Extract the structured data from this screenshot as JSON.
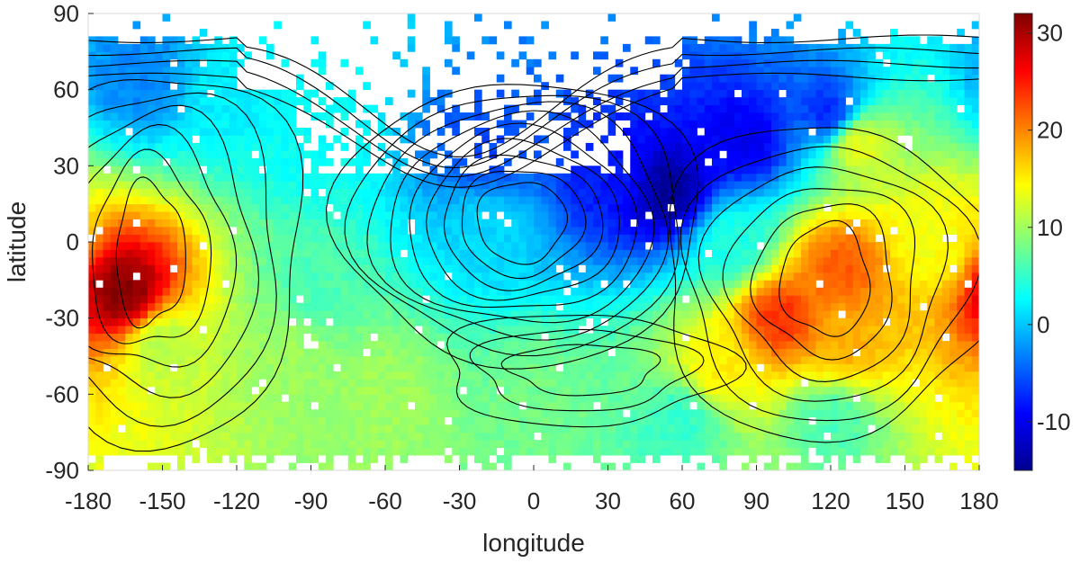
{
  "chart_data": {
    "type": "heatmap",
    "xlabel": "longitude",
    "ylabel": "latitude",
    "xlim": [
      -180,
      180
    ],
    "ylim": [
      -90,
      90
    ],
    "x_ticks": [
      -180,
      -150,
      -120,
      -90,
      -60,
      -30,
      0,
      30,
      60,
      90,
      120,
      150,
      180
    ],
    "y_ticks": [
      -90,
      -60,
      -30,
      0,
      30,
      60,
      90
    ],
    "colorbar": {
      "range": [
        -15,
        32
      ],
      "ticks": [
        -10,
        0,
        10,
        20,
        30
      ],
      "colormap": "jet"
    },
    "contours": "black iso-lines overlaid on the colour map",
    "missing_data": "white",
    "features": [
      {
        "lon": -165,
        "lat": -20,
        "value": 32
      },
      {
        "lon": -150,
        "lat": -40,
        "value": 11
      },
      {
        "lon": -100,
        "lat": -40,
        "value": 10
      },
      {
        "lon": -90,
        "lat": -20,
        "value": 6
      },
      {
        "lon": -90,
        "lat": 40,
        "value": 3
      },
      {
        "lon": -120,
        "lat": 60,
        "value": 2
      },
      {
        "lon": -160,
        "lat": 65,
        "value": -3
      },
      {
        "lon": -20,
        "lat": 35,
        "value": -6
      },
      {
        "lon": -20,
        "lat": 5,
        "value": 1
      },
      {
        "lon": 30,
        "lat": 25,
        "value": -8
      },
      {
        "lon": 55,
        "lat": 20,
        "value": -14
      },
      {
        "lon": 85,
        "lat": 40,
        "value": -10
      },
      {
        "lon": 120,
        "lat": 50,
        "value": -8
      },
      {
        "lon": 100,
        "lat": -30,
        "value": 24
      },
      {
        "lon": 125,
        "lat": -10,
        "value": 22
      },
      {
        "lon": 125,
        "lat": -40,
        "value": 18
      },
      {
        "lon": 160,
        "lat": 0,
        "value": 14
      },
      {
        "lon": 130,
        "lat": 40,
        "value": 14
      },
      {
        "lon": 75,
        "lat": -50,
        "value": 15
      },
      {
        "lon": -60,
        "lat": -60,
        "value": 10
      },
      {
        "lon": 60,
        "lat": -70,
        "value": 5
      },
      {
        "lon": 120,
        "lat": -70,
        "value": 6
      },
      {
        "lon": 0,
        "lat": -60,
        "value": 8
      },
      {
        "lon": 80,
        "lat": 0,
        "value": 4
      }
    ]
  }
}
